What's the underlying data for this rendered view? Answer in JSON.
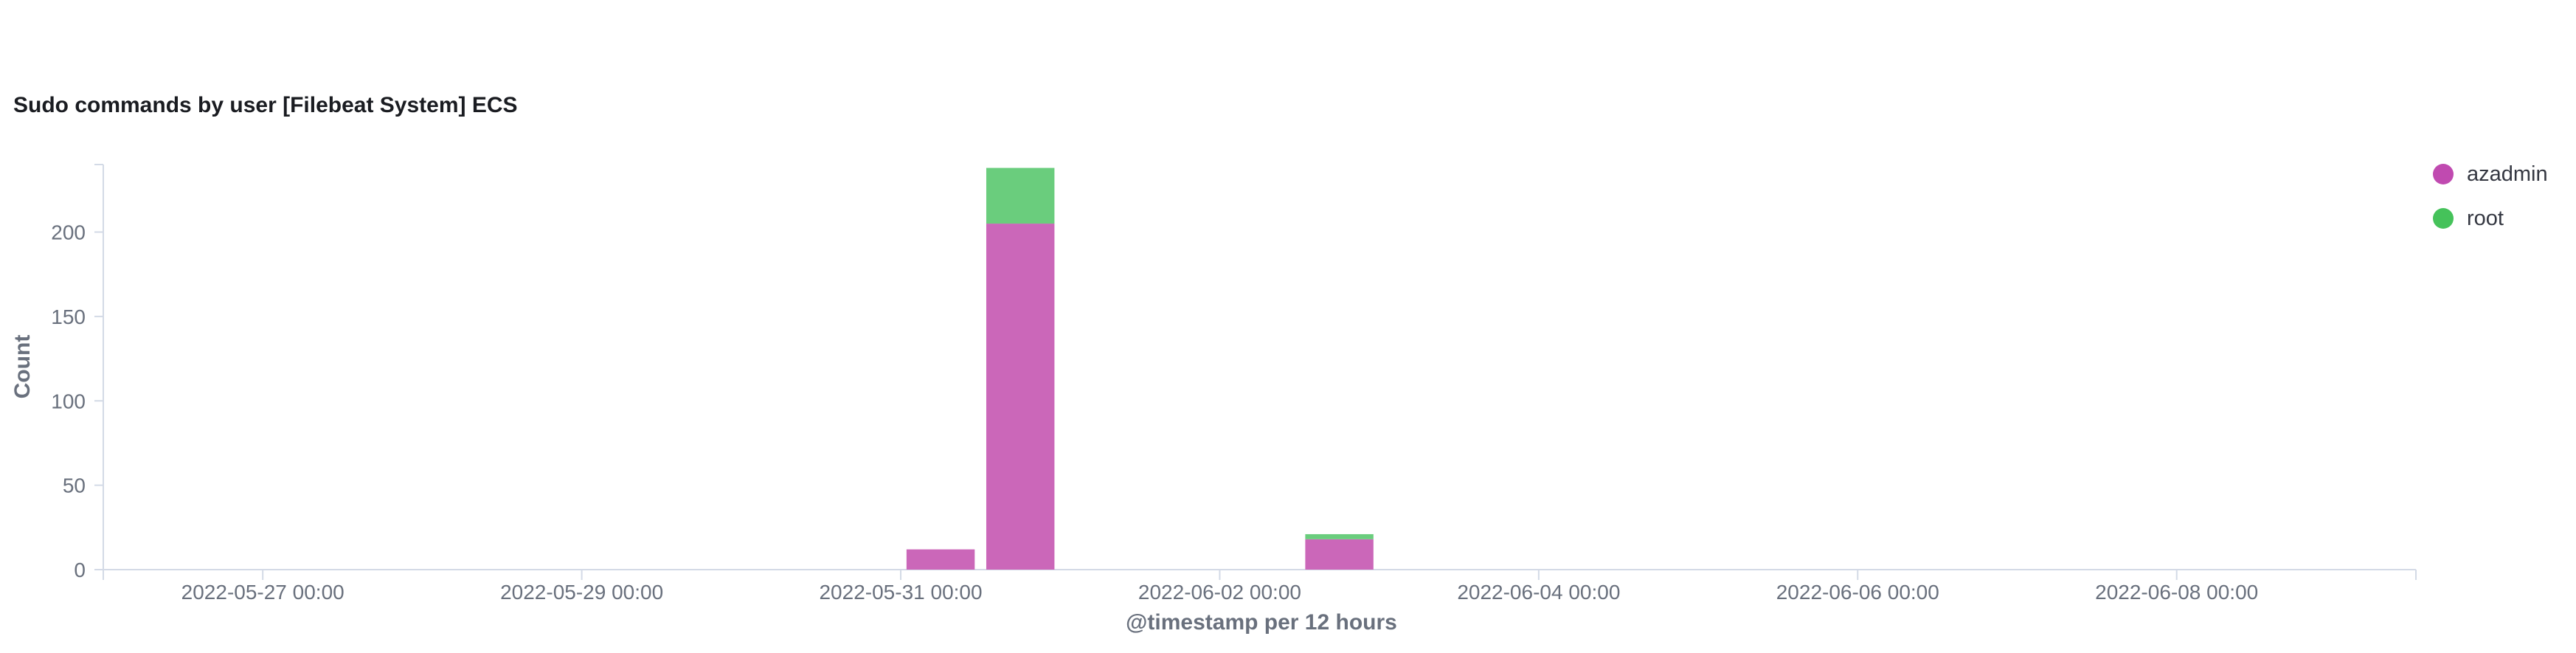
{
  "panel": {
    "title": "Sudo commands by user [Filebeat System] ECS"
  },
  "chart_data": {
    "type": "bar",
    "stacked": true,
    "title": "Sudo commands by user [Filebeat System] ECS",
    "xlabel": "@timestamp per 12 hours",
    "ylabel": "Count",
    "ylim": [
      0,
      240
    ],
    "yticks": [
      0,
      50,
      100,
      150,
      200
    ],
    "xlim": [
      "2022-05-26 00:00",
      "2022-06-09 12:00"
    ],
    "xticks": [
      "2022-05-27 00:00",
      "2022-05-29 00:00",
      "2022-05-31 00:00",
      "2022-06-02 00:00",
      "2022-06-04 00:00",
      "2022-06-06 00:00",
      "2022-06-08 00:00"
    ],
    "x": [
      "2022-05-31 00:00",
      "2022-05-31 12:00",
      "2022-06-02 12:00"
    ],
    "series": [
      {
        "name": "azadmin",
        "color": "#cb67b9",
        "values": [
          12,
          205,
          18
        ]
      },
      {
        "name": "root",
        "color": "#6acd7d",
        "values": [
          0,
          33,
          3
        ]
      }
    ],
    "legend_position": "top-right",
    "grid": false
  },
  "legend": {
    "items": [
      {
        "label": "azadmin",
        "color": "#c04ab0"
      },
      {
        "label": "root",
        "color": "#45c25a"
      }
    ]
  }
}
